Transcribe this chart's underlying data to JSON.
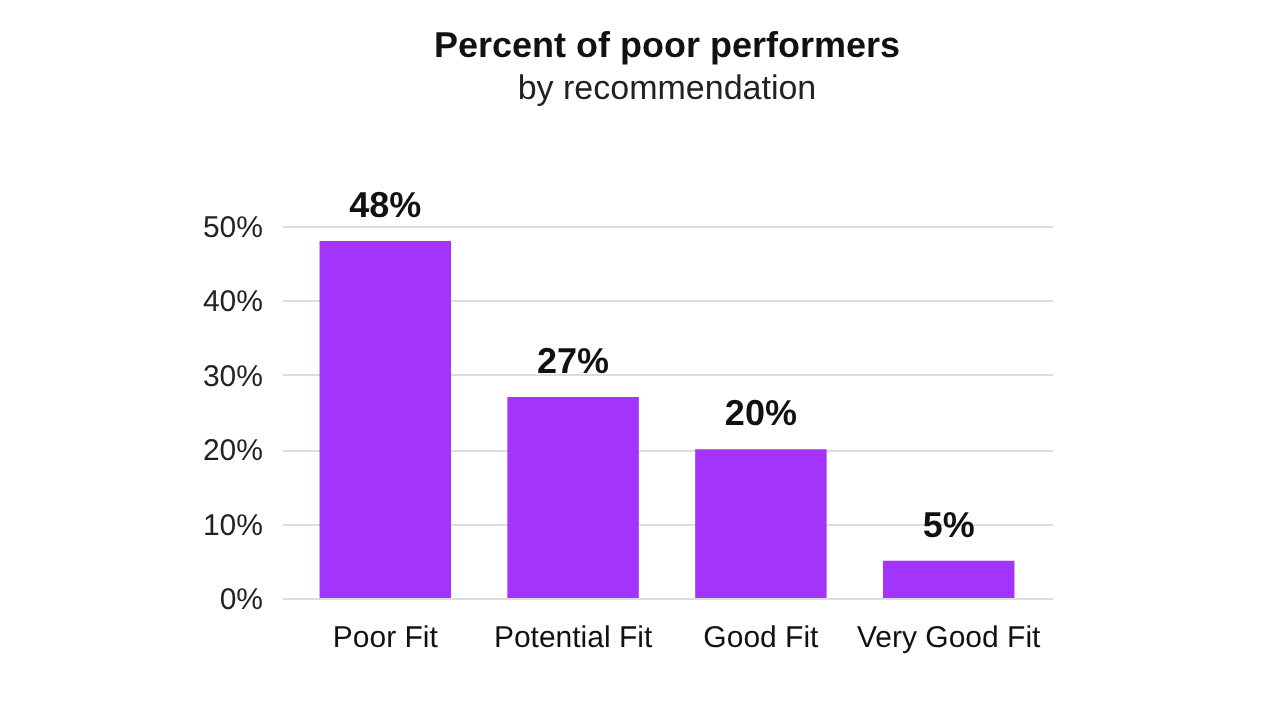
{
  "chart_data": {
    "type": "bar",
    "title": "Percent of poor performers",
    "subtitle": "by recommendation",
    "categories": [
      "Poor Fit",
      "Potential Fit",
      "Good Fit",
      "Very Good Fit"
    ],
    "values": [
      48,
      27,
      20,
      5
    ],
    "color": "#a234fb",
    "value_labels": [
      "48%",
      "27%",
      "20%",
      "5%"
    ],
    "ylim": [
      0,
      50
    ],
    "yticks": [
      {
        "value": 0,
        "label": "0%"
      },
      {
        "value": 10,
        "label": "10%"
      },
      {
        "value": 20,
        "label": "20%"
      },
      {
        "value": 30,
        "label": "30%"
      },
      {
        "value": 40,
        "label": "40%"
      },
      {
        "value": 50,
        "label": "50%"
      }
    ],
    "grid": "y"
  }
}
